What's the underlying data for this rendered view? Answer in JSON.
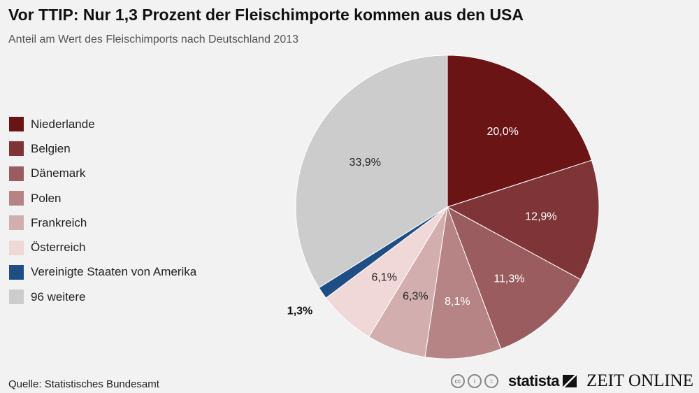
{
  "chart_data": {
    "type": "pie",
    "title": "Vor TTIP: Nur 1,3 Prozent der Fleischimporte kommen aus den USA",
    "subtitle": "Anteil am Wert des Fleischimports nach Deutschland 2013",
    "legend_placement": "left",
    "slices": [
      {
        "label": "Niederlande",
        "value": 20.0,
        "value_label": "20,0%",
        "color": "#6b1416"
      },
      {
        "label": "Belgien",
        "value": 12.9,
        "value_label": "12,9%",
        "color": "#7f3538"
      },
      {
        "label": "Dänemark",
        "value": 11.3,
        "value_label": "11,3%",
        "color": "#9a5c5e"
      },
      {
        "label": "Polen",
        "value": 8.1,
        "value_label": "8,1%",
        "color": "#b78485"
      },
      {
        "label": "Frankreich",
        "value": 6.3,
        "value_label": "6,3%",
        "color": "#d2aeae"
      },
      {
        "label": "Österreich",
        "value": 6.1,
        "value_label": "6,1%",
        "color": "#f0d8d9"
      },
      {
        "label": "Vereinigte Staaten von Amerika",
        "value": 1.3,
        "value_label": "1,3%",
        "color": "#1f4e85"
      },
      {
        "label": "96 weitere",
        "value": 33.9,
        "value_label": "33,9%",
        "color": "#cccccc"
      }
    ]
  },
  "footer": {
    "source": "Quelle: Statistisches Bundesamt",
    "cc_icons": [
      "cc-icon",
      "by-icon",
      "nd-icon"
    ],
    "cc_labels": [
      "cc",
      "i",
      "="
    ],
    "brand1": "statista",
    "brand2": "ZEIT ONLINE"
  }
}
